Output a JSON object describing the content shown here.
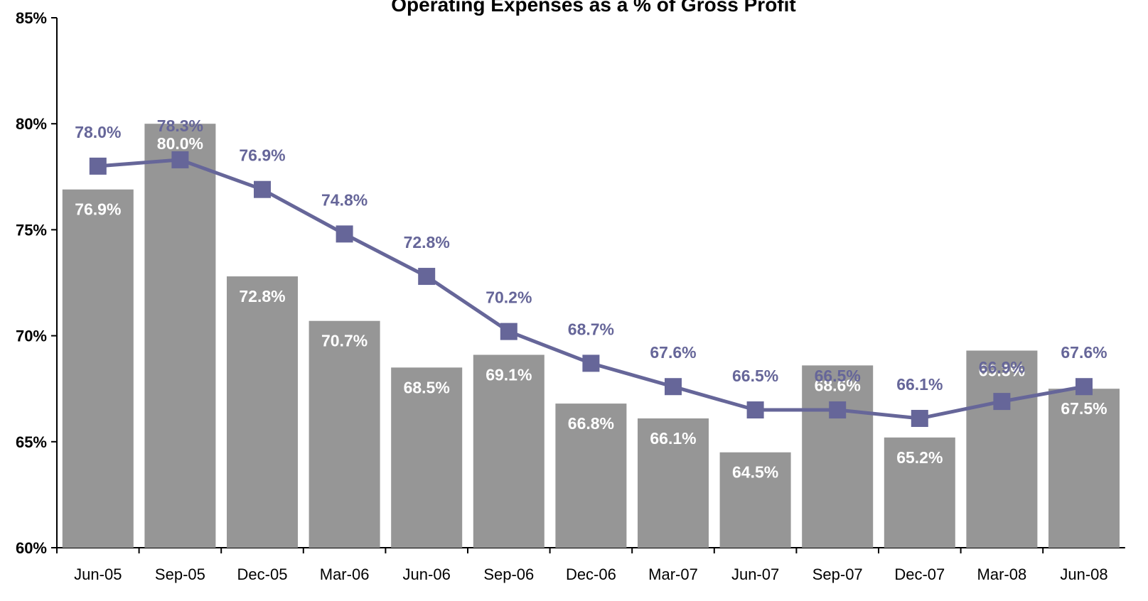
{
  "chart_data": {
    "type": "bar",
    "title": "Operating Expenses as a % of Gross Profit",
    "categories": [
      "Jun-05",
      "Sep-05",
      "Dec-05",
      "Mar-06",
      "Jun-06",
      "Sep-06",
      "Dec-06",
      "Mar-07",
      "Jun-07",
      "Sep-07",
      "Dec-07",
      "Mar-08",
      "Jun-08"
    ],
    "series": [
      {
        "type": "bar",
        "color": "#969696",
        "label_color": "#ffffff",
        "values": [
          76.9,
          80.0,
          72.8,
          70.7,
          68.5,
          69.1,
          66.8,
          66.1,
          64.5,
          68.6,
          65.2,
          69.3,
          67.5
        ],
        "value_labels": [
          "76.9%",
          "80.0%",
          "72.8%",
          "70.7%",
          "68.5%",
          "69.1%",
          "66.8%",
          "66.1%",
          "64.5%",
          "68.6%",
          "65.2%",
          "69.3%",
          "67.5%"
        ]
      },
      {
        "type": "line",
        "color": "#666699",
        "label_color": "#666699",
        "values": [
          78.0,
          78.3,
          76.9,
          74.8,
          72.8,
          70.2,
          68.7,
          67.6,
          66.5,
          66.5,
          66.1,
          66.9,
          67.6
        ],
        "value_labels": [
          "78.0%",
          "78.3%",
          "76.9%",
          "74.8%",
          "72.8%",
          "70.2%",
          "68.7%",
          "67.6%",
          "66.5%",
          "66.5%",
          "66.1%",
          "66.9%",
          "67.6%"
        ]
      }
    ],
    "ylim": [
      60,
      85
    ],
    "yticks": [
      {
        "value": 60,
        "label": "60%"
      },
      {
        "value": 65,
        "label": "65%"
      },
      {
        "value": 70,
        "label": "70%"
      },
      {
        "value": 75,
        "label": "75%"
      },
      {
        "value": 80,
        "label": "80%"
      },
      {
        "value": 85,
        "label": "85%"
      }
    ],
    "grid": false
  }
}
